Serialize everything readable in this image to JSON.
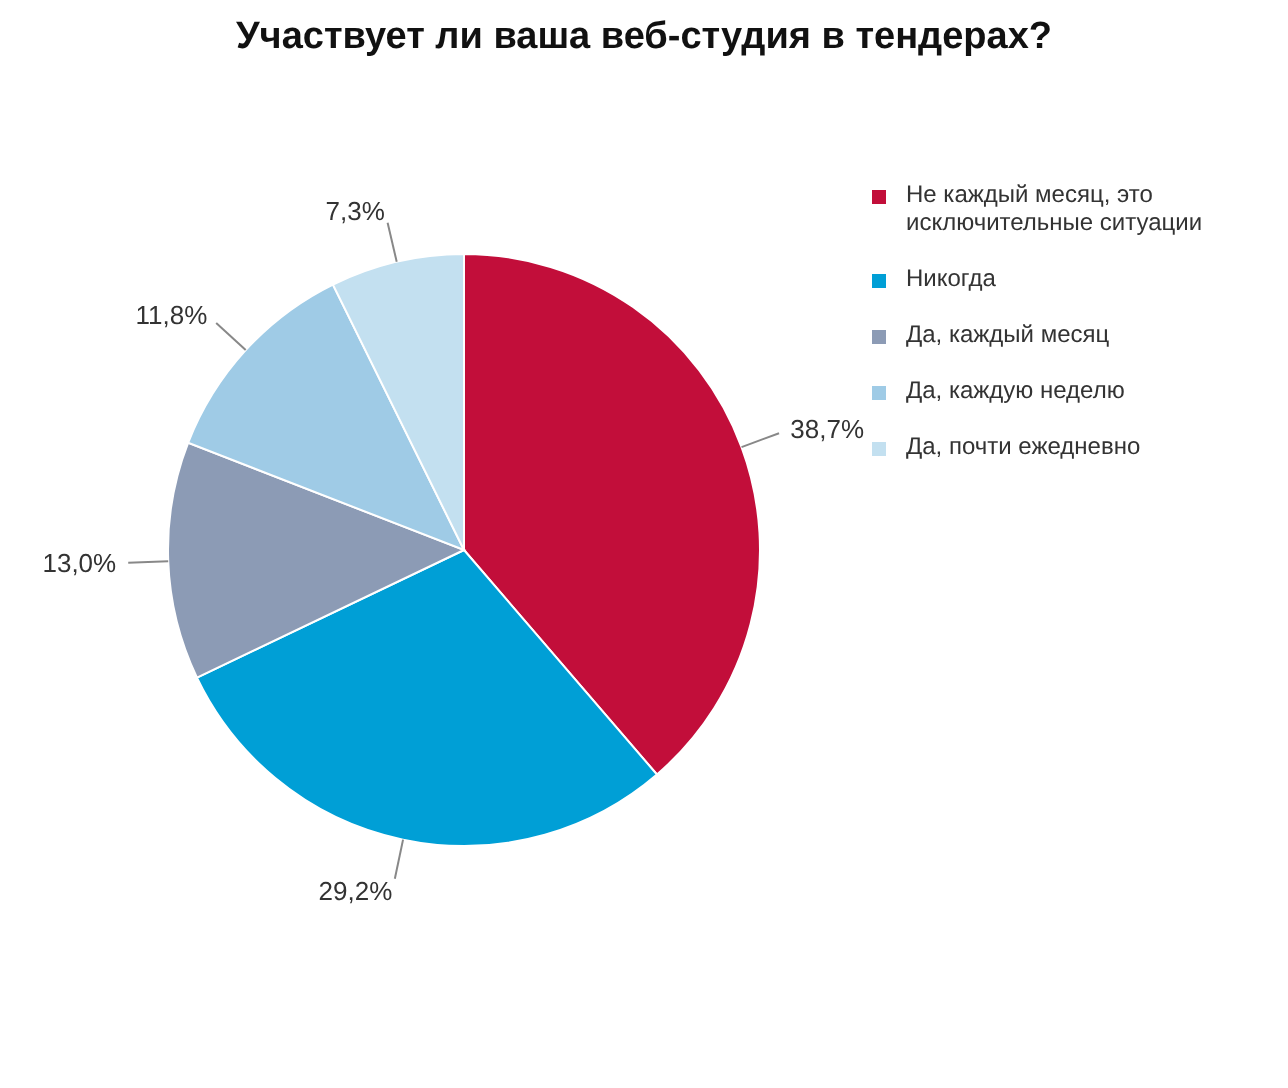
{
  "chart_data": {
    "type": "pie",
    "title": "Участвует ли ваша веб-студия в тендерах?",
    "categories": [
      "Не каждый месяц, это исключительные ситуации",
      "Никогда",
      "Да, каждый месяц",
      "Да, каждую неделю",
      "Да, почти ежедневно"
    ],
    "values": [
      38.7,
      29.2,
      13.0,
      11.8,
      7.3
    ],
    "colors": [
      "#c20e3a",
      "#009fd6",
      "#8c9bb5",
      "#9fcbe6",
      "#c3e0f0"
    ],
    "value_labels": [
      "38,7%",
      "29,2%",
      "13,0%",
      "11,8%",
      "7,3%"
    ],
    "legend": "right"
  }
}
